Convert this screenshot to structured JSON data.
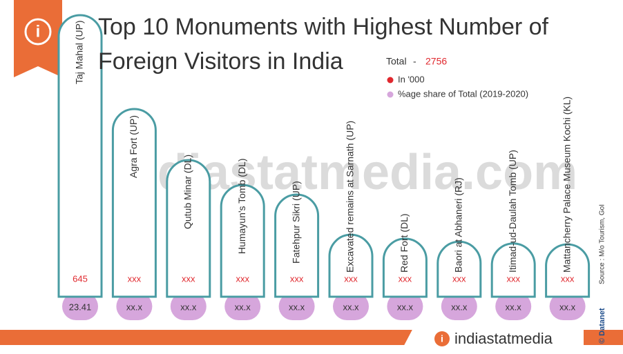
{
  "chart_data": {
    "type": "bar",
    "title": "Top 10 Monuments with Highest Number of Foreign Visitors in India",
    "total_label": "Total",
    "total_value": 2756,
    "categories": [
      "Taj Mahal (UP)",
      "Agra Fort (UP)",
      "Qutub Minar (DL)",
      "Humayun's Tomb (DL)",
      "Fatehpur Sikri (UP)",
      "Excavated remains at Sarnath (UP)",
      "Red Fort (DL)",
      "Baori at Abhaneri (RJ)",
      "Itimad-ud-Daulah Tomb (UP)",
      "Mattancherry Palace Museum Kochi (KL)"
    ],
    "bar_color": "#4a9ca3",
    "series": [
      {
        "name": "In '000",
        "color": "#e0282e",
        "values": [
          645,
          430,
          313,
          256,
          234,
          142,
          133,
          126,
          122,
          120
        ],
        "value_labels": [
          "645",
          "xxx",
          "xxx",
          "xxx",
          "xxx",
          "xxx",
          "xxx",
          "xxx",
          "xxx",
          "xxx"
        ]
      },
      {
        "name": "%age share of Total (2019-2020)",
        "color": "#d6a6dc",
        "values": [
          23.41,
          null,
          null,
          null,
          null,
          null,
          null,
          null,
          null,
          null
        ],
        "value_labels": [
          "23.41",
          "xx.x",
          "xx.x",
          "xx.x",
          "xx.x",
          "xx.x",
          "xx.x",
          "xx.x",
          "xx.x",
          "xx.x"
        ]
      }
    ],
    "source": "Source : M/o Tourism, GoI",
    "credit": "© Datanet",
    "watermark": "indiastatmedia.com",
    "logo": "indiastatmedia"
  }
}
